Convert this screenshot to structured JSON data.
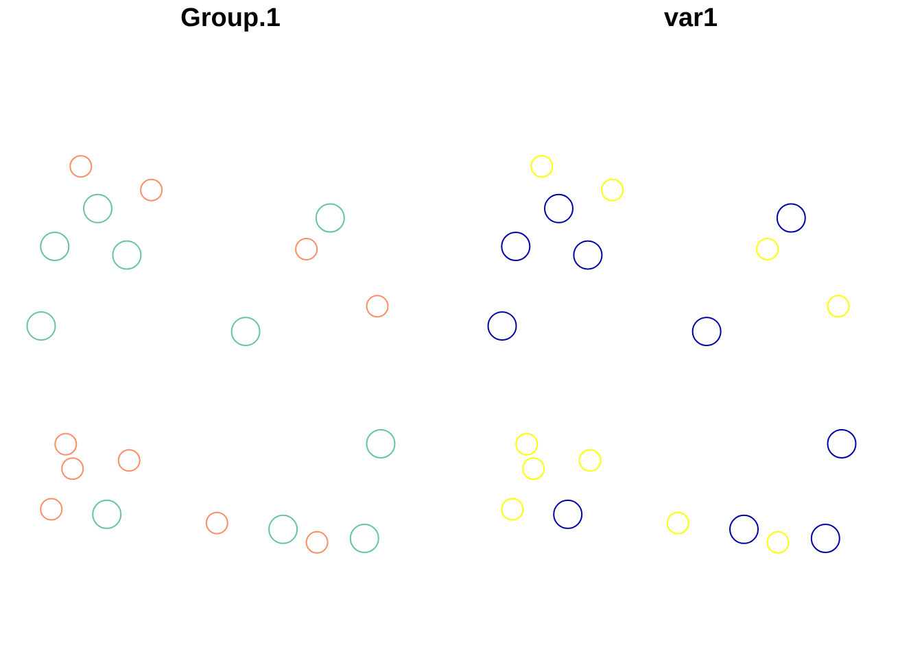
{
  "chart_data": [
    {
      "type": "scatter",
      "title": "Group.1",
      "grid": false,
      "axes_visible": false,
      "xlim": [
        0,
        1
      ],
      "ylim": [
        0,
        1
      ],
      "series": [
        {
          "color": "#FC8D62",
          "marker_size": "small",
          "points": [
            {
              "x": 0.105,
              "y": 0.917
            },
            {
              "x": 0.292,
              "y": 0.857
            },
            {
              "x": 0.703,
              "y": 0.707
            },
            {
              "x": 0.891,
              "y": 0.562
            },
            {
              "x": 0.065,
              "y": 0.212
            },
            {
              "x": 0.083,
              "y": 0.15
            },
            {
              "x": 0.233,
              "y": 0.171
            },
            {
              "x": 0.027,
              "y": 0.047
            },
            {
              "x": 0.466,
              "y": 0.012
            },
            {
              "x": 0.731,
              "y": -0.037
            }
          ]
        },
        {
          "color": "#66C2A5",
          "marker_size": "large",
          "points": [
            {
              "x": 0.15,
              "y": 0.81
            },
            {
              "x": 0.766,
              "y": 0.786
            },
            {
              "x": 0.036,
              "y": 0.714
            },
            {
              "x": 0.227,
              "y": 0.692
            },
            {
              "x": 0.0,
              "y": 0.512
            },
            {
              "x": 0.542,
              "y": 0.498
            },
            {
              "x": 0.9,
              "y": 0.213
            },
            {
              "x": 0.174,
              "y": 0.034
            },
            {
              "x": 0.641,
              "y": -0.004
            },
            {
              "x": 0.857,
              "y": -0.027
            }
          ]
        }
      ]
    },
    {
      "type": "scatter",
      "title": "var1",
      "grid": false,
      "axes_visible": false,
      "xlim": [
        0,
        1
      ],
      "ylim": [
        0,
        1
      ],
      "series": [
        {
          "color": "#FFFF00",
          "marker_size": "small",
          "points": [
            {
              "x": 0.105,
              "y": 0.917
            },
            {
              "x": 0.292,
              "y": 0.857
            },
            {
              "x": 0.703,
              "y": 0.707
            },
            {
              "x": 0.891,
              "y": 0.562
            },
            {
              "x": 0.065,
              "y": 0.212
            },
            {
              "x": 0.083,
              "y": 0.15
            },
            {
              "x": 0.233,
              "y": 0.171
            },
            {
              "x": 0.027,
              "y": 0.047
            },
            {
              "x": 0.466,
              "y": 0.012
            },
            {
              "x": 0.731,
              "y": -0.037
            }
          ]
        },
        {
          "color": "#0000AA",
          "marker_size": "large",
          "points": [
            {
              "x": 0.15,
              "y": 0.81
            },
            {
              "x": 0.766,
              "y": 0.786
            },
            {
              "x": 0.036,
              "y": 0.714
            },
            {
              "x": 0.227,
              "y": 0.692
            },
            {
              "x": 0.0,
              "y": 0.512
            },
            {
              "x": 0.542,
              "y": 0.498
            },
            {
              "x": 0.9,
              "y": 0.213
            },
            {
              "x": 0.174,
              "y": 0.034
            },
            {
              "x": 0.641,
              "y": -0.004
            },
            {
              "x": 0.857,
              "y": -0.027
            }
          ]
        }
      ]
    }
  ]
}
